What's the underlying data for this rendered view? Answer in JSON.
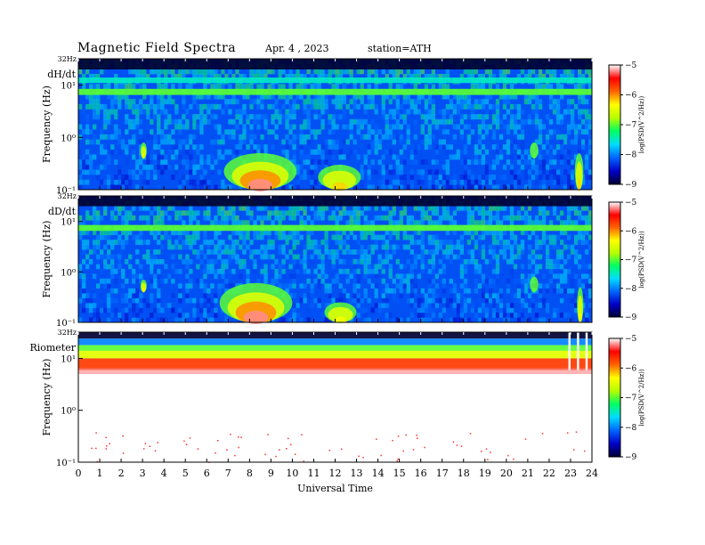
{
  "header": {
    "title": "Magnetic  Field  Spectra",
    "date": "Apr. 4  , 2023",
    "station": "station=ATH"
  },
  "colorbar": {
    "label": "log(PSD(V^2/Hz))",
    "ticks": [
      -9,
      -8,
      -7,
      -6,
      -5
    ],
    "colors": [
      "#000033",
      "#0000c8",
      "#0064ff",
      "#00dcff",
      "#00ff64",
      "#b4ff00",
      "#ffff00",
      "#ff6400",
      "#ff0000",
      "#ffffff"
    ]
  },
  "xaxis": {
    "label": "Universal Time",
    "ticks": [
      "0",
      "1",
      "2",
      "3",
      "4",
      "5",
      "6",
      "7",
      "8",
      "9",
      "10",
      "11",
      "12",
      "13",
      "14",
      "15",
      "16",
      "17",
      "18",
      "19",
      "20",
      "21",
      "22",
      "23",
      "24"
    ]
  },
  "chart_data": [
    {
      "type": "heatmap",
      "panel_label": "dH/dt",
      "top_label": "32Hz",
      "ylabel": "Frequency  (Hz)",
      "ytick_labels": [
        "10¹",
        "10⁰",
        "10⁻¹"
      ],
      "ytick_values": [
        10,
        1,
        0.1
      ],
      "ylim": [
        0.1,
        32
      ],
      "yscale": "log",
      "xlim": [
        0,
        24
      ],
      "zlim": [
        -9,
        -5
      ],
      "background_log_psd": -8.2,
      "bands": [
        {
          "freq_range": [
            20,
            32
          ],
          "level": -9
        },
        {
          "freq_range": [
            11,
            14
          ],
          "level": -7.5
        },
        {
          "freq_range": [
            6.5,
            8.5
          ],
          "level": -7
        }
      ],
      "events": [
        {
          "hours": [
            6.8,
            10.2
          ],
          "freq_range": [
            0.1,
            0.5
          ],
          "peak_level": -5.2
        },
        {
          "hours": [
            11.2,
            13.2
          ],
          "freq_range": [
            0.1,
            0.3
          ],
          "peak_level": -6.2
        },
        {
          "hours": [
            2.9,
            3.2
          ],
          "freq_range": [
            0.4,
            0.8
          ],
          "peak_level": -6.3
        },
        {
          "hours": [
            21.1,
            21.5
          ],
          "freq_range": [
            0.4,
            0.8
          ],
          "peak_level": -7
        },
        {
          "hours": [
            23.2,
            23.6
          ],
          "freq_range": [
            0.1,
            0.5
          ],
          "peak_level": -6.2
        }
      ]
    },
    {
      "type": "heatmap",
      "panel_label": "dD/dt",
      "top_label": "32Hz",
      "ylabel": "Frequency  (Hz)",
      "ytick_labels": [
        "10¹",
        "10⁰",
        "10⁻¹"
      ],
      "ytick_values": [
        10,
        1,
        0.1
      ],
      "ylim": [
        0.1,
        32
      ],
      "yscale": "log",
      "xlim": [
        0,
        24
      ],
      "zlim": [
        -9,
        -5
      ],
      "background_log_psd": -8.2,
      "bands": [
        {
          "freq_range": [
            20,
            32
          ],
          "level": -9
        },
        {
          "freq_range": [
            6.5,
            8.5
          ],
          "level": -7
        }
      ],
      "events": [
        {
          "hours": [
            6.6,
            10
          ],
          "freq_range": [
            0.1,
            0.6
          ],
          "peak_level": -5.2
        },
        {
          "hours": [
            11.5,
            13
          ],
          "freq_range": [
            0.1,
            0.25
          ],
          "peak_level": -6.4
        },
        {
          "hours": [
            2.9,
            3.2
          ],
          "freq_range": [
            0.4,
            0.7
          ],
          "peak_level": -6.3
        },
        {
          "hours": [
            21.1,
            21.5
          ],
          "freq_range": [
            0.4,
            0.8
          ],
          "peak_level": -7
        },
        {
          "hours": [
            23.3,
            23.6
          ],
          "freq_range": [
            0.1,
            0.5
          ],
          "peak_level": -6.4
        }
      ]
    },
    {
      "type": "heatmap",
      "panel_label": "Riometer",
      "top_label": "32Hz",
      "ylabel": "Frequency  (Hz)",
      "ytick_labels": [
        "10¹",
        "10⁰",
        "10⁻¹"
      ],
      "ytick_values": [
        10,
        1,
        0.1
      ],
      "ylim": [
        0.1,
        32
      ],
      "yscale": "log",
      "xlim": [
        0,
        24
      ],
      "zlim": [
        -9,
        -5
      ],
      "background_log_psd": -5,
      "bands": [
        {
          "freq_range": [
            24,
            32
          ],
          "level": -9
        },
        {
          "freq_range": [
            18,
            24
          ],
          "level": -8
        },
        {
          "freq_range": [
            14,
            18
          ],
          "level": -7
        },
        {
          "freq_range": [
            10,
            14
          ],
          "level": -6.5
        },
        {
          "freq_range": [
            6,
            10
          ],
          "level": -5.7
        }
      ],
      "events": [],
      "gaps": [
        {
          "hours": [
            22.9,
            23.0
          ]
        },
        {
          "hours": [
            23.3,
            23.4
          ]
        },
        {
          "hours": [
            23.7,
            23.8
          ]
        }
      ]
    }
  ]
}
